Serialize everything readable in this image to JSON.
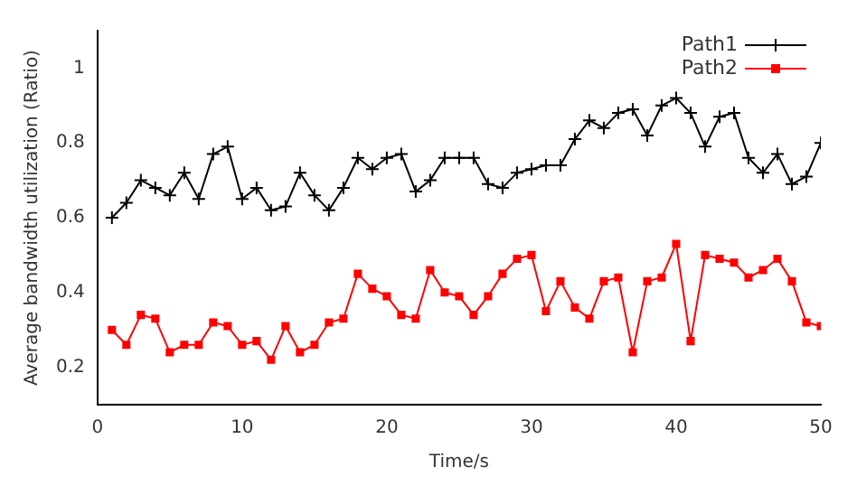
{
  "chart_data": {
    "type": "line",
    "xlabel": "Time/s",
    "ylabel": "Average bandwidth utilization (Ratio)",
    "x": [
      1,
      2,
      3,
      4,
      5,
      6,
      7,
      8,
      9,
      10,
      11,
      12,
      13,
      14,
      15,
      16,
      17,
      18,
      19,
      20,
      21,
      22,
      23,
      24,
      25,
      26,
      27,
      28,
      29,
      30,
      31,
      32,
      33,
      34,
      35,
      36,
      37,
      38,
      39,
      40,
      41,
      42,
      43,
      44,
      45,
      46,
      47,
      48,
      49,
      50
    ],
    "series": [
      {
        "name": "Path1",
        "color": "#000000",
        "marker": "cross",
        "values": [
          0.6,
          0.64,
          0.7,
          0.68,
          0.66,
          0.72,
          0.65,
          0.77,
          0.79,
          0.65,
          0.68,
          0.62,
          0.63,
          0.72,
          0.66,
          0.62,
          0.68,
          0.76,
          0.73,
          0.76,
          0.77,
          0.67,
          0.7,
          0.76,
          0.76,
          0.76,
          0.69,
          0.68,
          0.72,
          0.73,
          0.74,
          0.74,
          0.81,
          0.86,
          0.84,
          0.88,
          0.89,
          0.82,
          0.9,
          0.92,
          0.88,
          0.79,
          0.87,
          0.88,
          0.76,
          0.72,
          0.77,
          0.69,
          0.71,
          0.8
        ]
      },
      {
        "name": "Path2",
        "color": "#ff0000",
        "marker": "square",
        "values": [
          0.3,
          0.26,
          0.34,
          0.33,
          0.24,
          0.26,
          0.26,
          0.32,
          0.31,
          0.26,
          0.27,
          0.22,
          0.31,
          0.24,
          0.26,
          0.32,
          0.33,
          0.45,
          0.41,
          0.39,
          0.34,
          0.33,
          0.46,
          0.4,
          0.39,
          0.34,
          0.39,
          0.45,
          0.49,
          0.5,
          0.35,
          0.43,
          0.36,
          0.33,
          0.43,
          0.44,
          0.24,
          0.43,
          0.44,
          0.53,
          0.27,
          0.5,
          0.49,
          0.48,
          0.44,
          0.46,
          0.49,
          0.43,
          0.32,
          0.31
        ]
      }
    ],
    "xlim": [
      0,
      50
    ],
    "xticks": [
      0,
      10,
      20,
      30,
      40,
      50
    ],
    "ylim": [
      0.1,
      1.1
    ],
    "yticks": [
      0.2,
      0.4,
      0.6,
      0.8,
      1
    ],
    "grid": false,
    "legend": "top right",
    "line_style": "solid"
  }
}
